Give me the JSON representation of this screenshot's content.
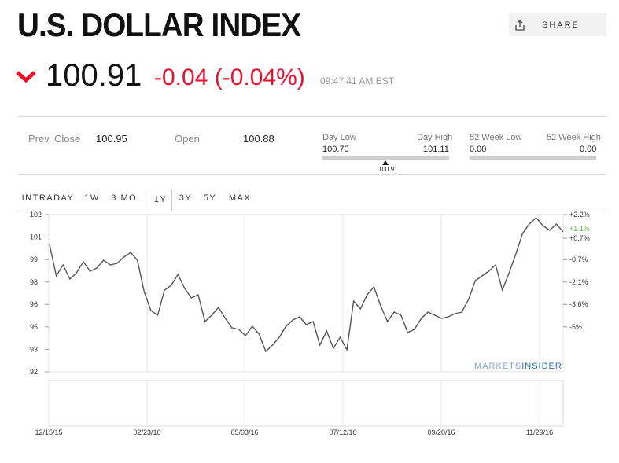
{
  "header": {
    "title": "U.S. DOLLAR INDEX",
    "share_label": "SHARE"
  },
  "quote": {
    "price": "100.91",
    "change": "-0.04 (-0.04%)",
    "time": "09:47:41 AM EST",
    "direction": "down",
    "down_color": "#e8112d"
  },
  "stats": {
    "prev_close_label": "Prev. Close",
    "prev_close": "100.95",
    "open_label": "Open",
    "open": "100.88",
    "day_low_label": "Day Low",
    "day_low": "100.70",
    "day_high_label": "Day High",
    "day_high": "101.11",
    "day_marker": "100.91",
    "week52_low_label": "52 Week Low",
    "week52_low": "0.00",
    "week52_high_label": "52 Week High",
    "week52_high": "0.00"
  },
  "tabs": [
    {
      "label": "INTRADAY",
      "active": false
    },
    {
      "label": "1W",
      "active": false
    },
    {
      "label": "3 MO.",
      "active": false
    },
    {
      "label": "1Y",
      "active": true
    },
    {
      "label": "3Y",
      "active": false
    },
    {
      "label": "5Y",
      "active": false
    },
    {
      "label": "MAX",
      "active": false
    }
  ],
  "chart_data": {
    "type": "line",
    "title": "",
    "xlabel": "",
    "ylabel": "",
    "ylim": [
      92,
      102
    ],
    "y_ticks": [
      "92",
      "93",
      "95",
      "96",
      "98",
      "99",
      "101",
      "102"
    ],
    "y_tick_values": [
      92,
      93.43,
      94.86,
      96.29,
      97.71,
      99.14,
      100.57,
      102
    ],
    "pct_ticks": [
      {
        "label": "+2.2%",
        "y": 102.0
      },
      {
        "label": "+0.7%",
        "y": 100.5
      },
      {
        "label": "-0.7%",
        "y": 99.14
      },
      {
        "label": "-2.1%",
        "y": 97.71
      },
      {
        "label": "-3.6%",
        "y": 96.29
      },
      {
        "label": "-5%",
        "y": 94.86
      }
    ],
    "current_pct": {
      "label": "+1.1%",
      "y": 101.1,
      "color": "#66bb44"
    },
    "x_ticks": [
      "12/15/15",
      "02/23/16",
      "05/03/16",
      "07/12/16",
      "09/20/16",
      "11/29/16"
    ],
    "watermark": {
      "text_a": "MARKETS",
      "text_b": "INSIDER"
    },
    "line_color": "#555555",
    "grid": true,
    "series": [
      {
        "x": [
          "12/15/15",
          "12/16/15",
          "12/18/15",
          "12/21/15",
          "12/24/15",
          "12/29/15",
          "01/04/16",
          "01/07/16",
          "01/12/16",
          "01/15/16",
          "01/20/16",
          "01/26/16",
          "01/29/16",
          "02/02/16",
          "02/05/16",
          "02/09/16",
          "02/12/16",
          "02/17/16",
          "02/22/16",
          "02/25/16",
          "03/01/16",
          "03/04/16",
          "03/09/16",
          "03/14/16",
          "03/17/16",
          "03/22/16",
          "03/28/16",
          "03/31/16",
          "04/05/16",
          "04/11/16",
          "04/15/16",
          "04/21/16",
          "04/27/16",
          "05/02/16",
          "05/06/16",
          "05/11/16",
          "05/17/16",
          "05/23/16",
          "05/27/16",
          "06/02/16",
          "06/08/16",
          "06/14/16",
          "06/20/16",
          "06/24/16",
          "06/29/16",
          "07/05/16",
          "07/11/16",
          "07/15/16",
          "07/21/16",
          "07/27/16",
          "08/02/16",
          "08/08/16",
          "08/12/16",
          "08/18/16",
          "08/24/16",
          "08/30/16",
          "09/06/16",
          "09/12/16",
          "09/16/16",
          "09/22/16",
          "09/28/16",
          "10/04/16",
          "10/10/16",
          "10/14/16",
          "10/20/16",
          "10/26/16",
          "11/01/16",
          "11/04/16",
          "11/09/16",
          "11/14/16",
          "11/18/16",
          "11/23/16",
          "11/29/16",
          "12/02/16",
          "12/07/16",
          "12/13/16",
          "12/15/16"
        ],
        "y": [
          100.1,
          98.1,
          98.8,
          97.9,
          98.3,
          99.0,
          98.4,
          98.6,
          99.1,
          98.8,
          98.9,
          99.3,
          99.6,
          99.1,
          97.1,
          95.9,
          95.6,
          97.2,
          97.5,
          98.2,
          97.3,
          96.7,
          96.9,
          95.2,
          95.6,
          96.1,
          95.4,
          94.8,
          94.7,
          94.3,
          94.9,
          94.4,
          93.3,
          93.7,
          94.2,
          94.9,
          95.3,
          95.5,
          95.0,
          95.2,
          93.7,
          94.6,
          93.5,
          94.2,
          93.4,
          96.5,
          96.0,
          96.9,
          97.4,
          96.2,
          95.2,
          95.8,
          95.6,
          94.5,
          94.7,
          95.4,
          95.8,
          95.6,
          95.4,
          95.5,
          95.7,
          95.8,
          96.6,
          97.8,
          98.1,
          98.4,
          98.8,
          97.2,
          98.3,
          99.5,
          100.8,
          101.4,
          101.8,
          101.3,
          101.0,
          101.4,
          100.91
        ]
      }
    ]
  }
}
